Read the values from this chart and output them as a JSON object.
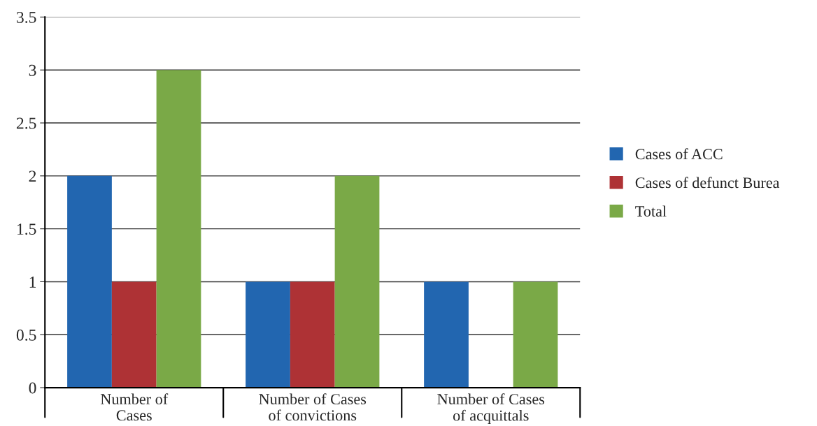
{
  "chart_data": {
    "type": "bar",
    "categories": [
      "Number of\nCases",
      "Number of Cases\nof convictions",
      "Number of Cases\nof acquittals"
    ],
    "series": [
      {
        "name": "Cases of ACC",
        "color": "#2266b0",
        "values": [
          2,
          1,
          1
        ]
      },
      {
        "name": "Cases of defunct Burea",
        "color": "#ae3235",
        "values": [
          1,
          1,
          null
        ]
      },
      {
        "name": "Total",
        "color": "#7aa947",
        "values": [
          3,
          2,
          1
        ]
      }
    ],
    "ylim": [
      0,
      3.5
    ],
    "yticks": [
      0,
      0.5,
      1,
      1.5,
      2,
      2.5,
      3,
      3.5
    ],
    "grid": "y",
    "legend": "right"
  }
}
